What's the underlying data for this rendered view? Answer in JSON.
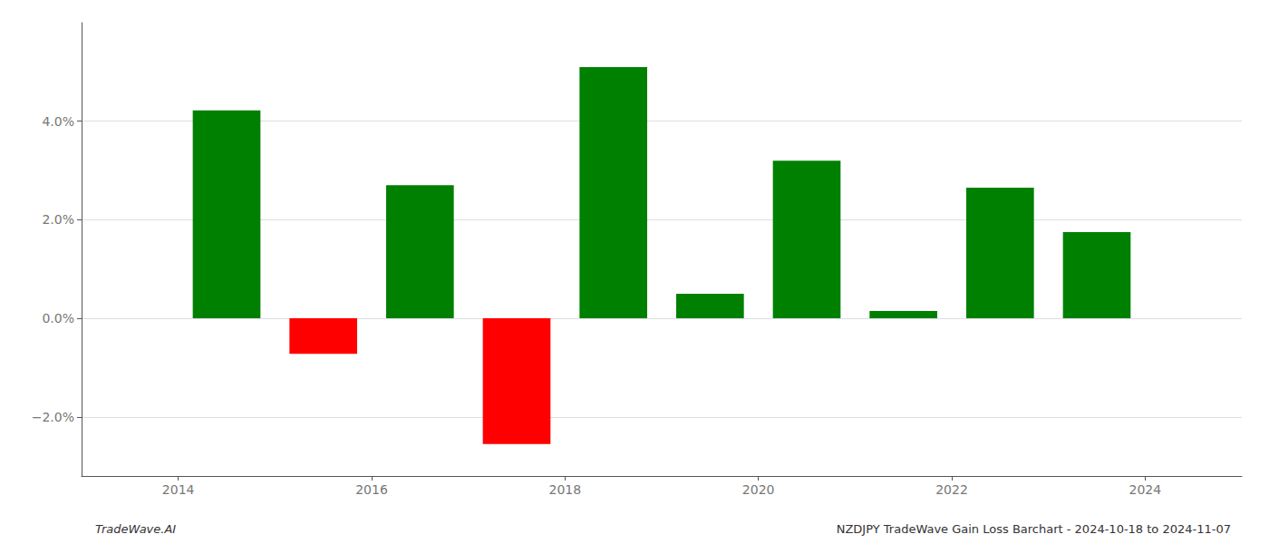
{
  "chart_data": {
    "type": "bar",
    "x": [
      2014.5,
      2015.5,
      2016.5,
      2017.5,
      2018.5,
      2019.5,
      2020.5,
      2021.5,
      2022.5,
      2023.5
    ],
    "values": [
      0.0422,
      -0.0072,
      0.027,
      -0.0255,
      0.051,
      0.005,
      0.032,
      0.0015,
      0.0265,
      0.0175
    ],
    "colors": [
      "#008000",
      "#ff0000",
      "#008000",
      "#ff0000",
      "#008000",
      "#008000",
      "#008000",
      "#008000",
      "#008000",
      "#008000"
    ],
    "xlim": [
      2013.0,
      2025.0
    ],
    "xticks": [
      2014,
      2016,
      2018,
      2020,
      2022,
      2024
    ],
    "ylim": [
      -0.032,
      0.06
    ],
    "yticks": [
      {
        "value": -0.02,
        "label": "−2.0%"
      },
      {
        "value": 0.0,
        "label": "0.0%"
      },
      {
        "value": 0.02,
        "label": "2.0%"
      },
      {
        "value": 0.04,
        "label": "4.0%"
      }
    ],
    "grid": true,
    "annotations": [
      "TradeWave.AI",
      "NZDJPY TradeWave Gain Loss Barchart - 2024-10-18 to 2024-11-07"
    ]
  }
}
